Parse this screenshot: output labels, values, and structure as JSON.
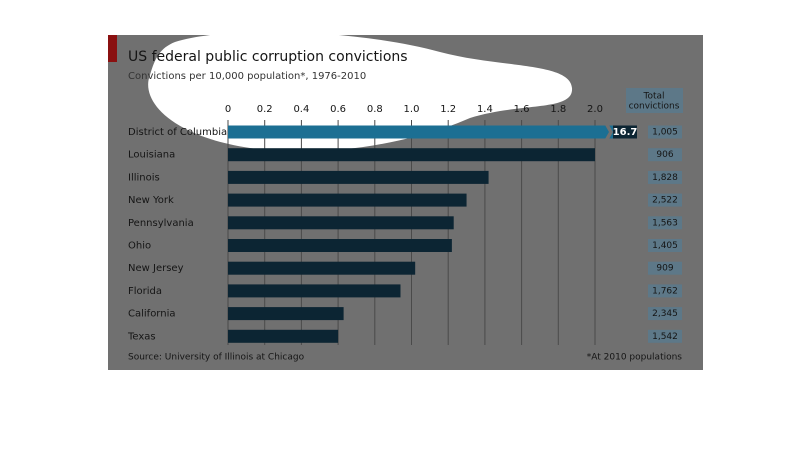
{
  "chart_data": {
    "type": "barh",
    "title": "US federal public corruption convictions",
    "subtitle": "Convictions per 10,000 population*, 1976-2010",
    "categories": [
      "District of Columbia",
      "Louisiana",
      "Illinois",
      "New York",
      "Pennsylvania",
      "Ohio",
      "New Jersey",
      "Florida",
      "California",
      "Texas"
    ],
    "values": [
      16.7,
      2.0,
      1.42,
      1.3,
      1.23,
      1.22,
      1.02,
      0.94,
      0.63,
      0.6
    ],
    "value_labels": [
      "16.7",
      null,
      null,
      null,
      null,
      null,
      null,
      null,
      null,
      null
    ],
    "color": "#0c2533",
    "highlight_color": "#1c6f93",
    "xlim": [
      0,
      2.0
    ],
    "xticks": [
      0,
      0.2,
      0.4,
      0.6,
      0.8,
      {
        "value": 1.0,
        "label": "1.0"
      },
      1.2,
      1.4,
      1.6,
      1.8,
      {
        "value": 2.0,
        "label": "2.0"
      }
    ],
    "grid": true,
    "total_header": [
      "Total",
      "convictions"
    ],
    "totals": [
      "1,005",
      "906",
      "1,828",
      "2,522",
      "1,563",
      "1,405",
      "909",
      "1,762",
      "2,345",
      "1,542"
    ],
    "source": "Source: University of Illinois at Chicago",
    "footnote": "*At 2010 populations"
  }
}
